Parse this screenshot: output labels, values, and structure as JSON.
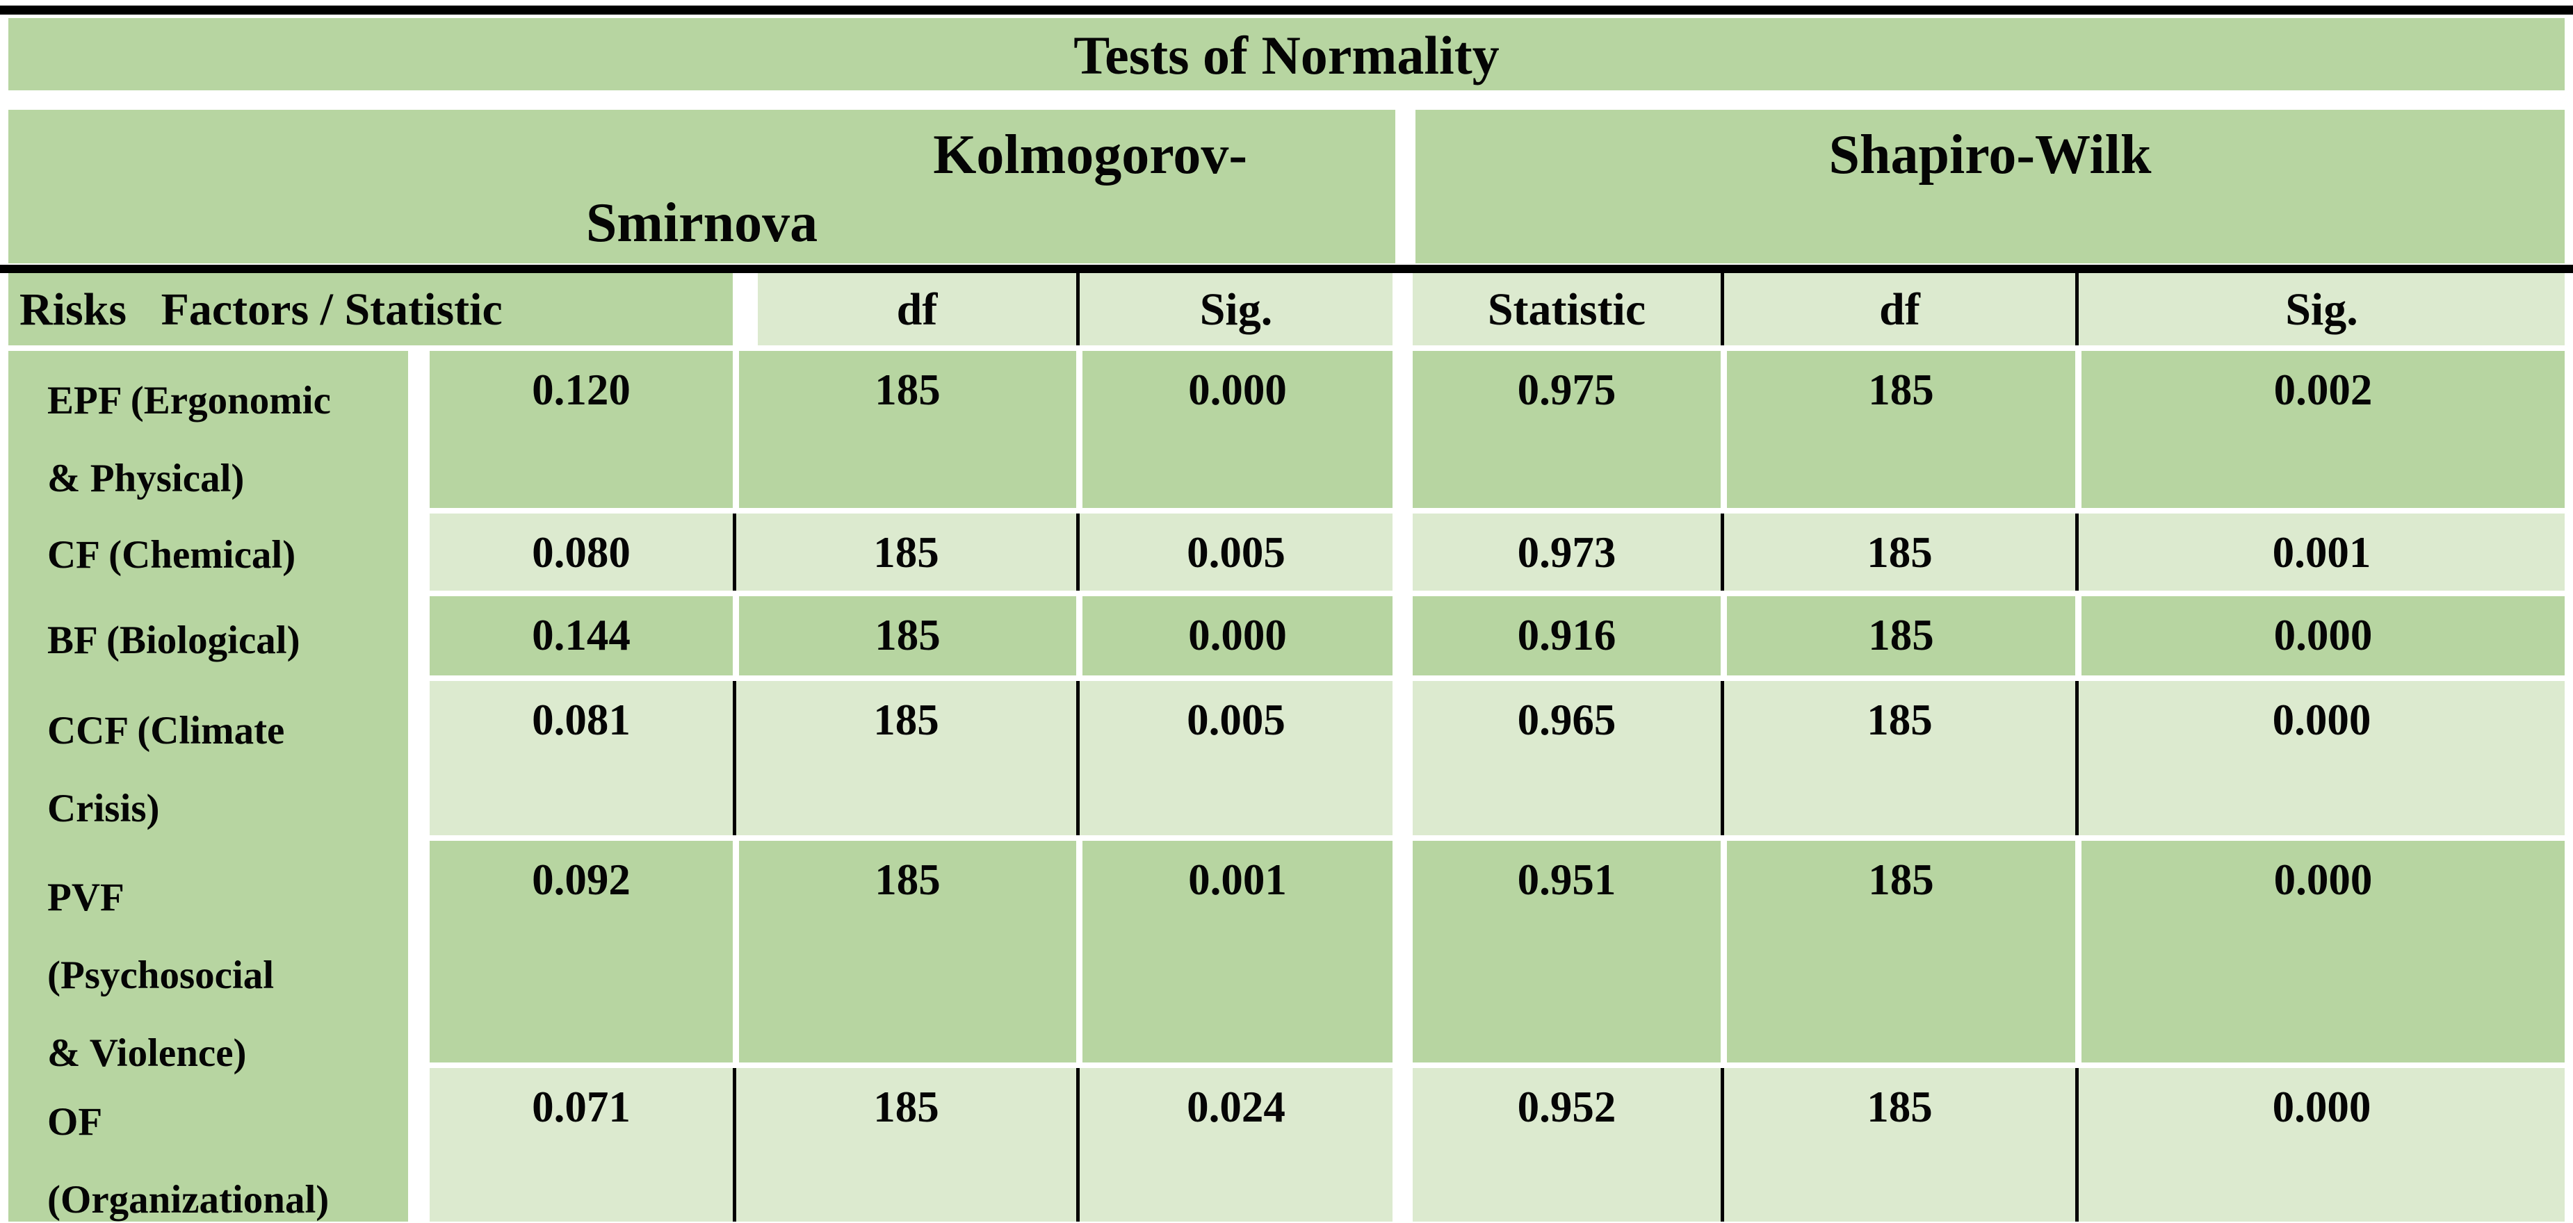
{
  "title": "Tests of Normality",
  "header_groups": {
    "kolmogorov_line1": "Kolmogorov-",
    "kolmogorov_line2": "Smirnova",
    "shapiro": "Shapiro-Wilk"
  },
  "column_headers": [
    "Risks   Factors / Statistic",
    "df",
    "Sig.",
    "Statistic",
    "df",
    "Sig."
  ],
  "rows": [
    {
      "label": "EPF (Ergonomic & Physical)",
      "label_lines": [
        "EPF (Ergonomic",
        "& Physical)"
      ],
      "values": [
        "0.120",
        "185",
        "0.000",
        "0.975",
        "185",
        "0.002"
      ]
    },
    {
      "label": "CF (Chemical)",
      "label_lines": [
        "CF (Chemical)"
      ],
      "values": [
        "0.080",
        "185",
        "0.005",
        "0.973",
        "185",
        "0.001"
      ]
    },
    {
      "label": "BF (Biological)",
      "label_lines": [
        "BF (Biological)"
      ],
      "values": [
        "0.144",
        "185",
        "0.000",
        "0.916",
        "185",
        "0.000"
      ]
    },
    {
      "label": "CCF (Climate Crisis)",
      "label_lines": [
        "CCF (Climate",
        "Crisis)"
      ],
      "values": [
        "0.081",
        "185",
        "0.005",
        "0.965",
        "185",
        "0.000"
      ]
    },
    {
      "label": "PVF (Psychosocial & Violence)",
      "label_lines": [
        "PVF",
        "(Psychosocial",
        "& Violence)"
      ],
      "values": [
        "0.092",
        "185",
        "0.001",
        "0.951",
        "185",
        "0.000"
      ]
    },
    {
      "label": "OF (Organizational)",
      "label_lines": [
        "OF",
        "(Organizational)"
      ],
      "values": [
        "0.071",
        "185",
        "0.024",
        "0.952",
        "185",
        "0.000"
      ]
    }
  ],
  "colors": {
    "medium_green": "#b7d5a1",
    "light_green": "#dceacf",
    "rule_black": "#000000",
    "text": "#050505",
    "background": "#ffffff"
  }
}
